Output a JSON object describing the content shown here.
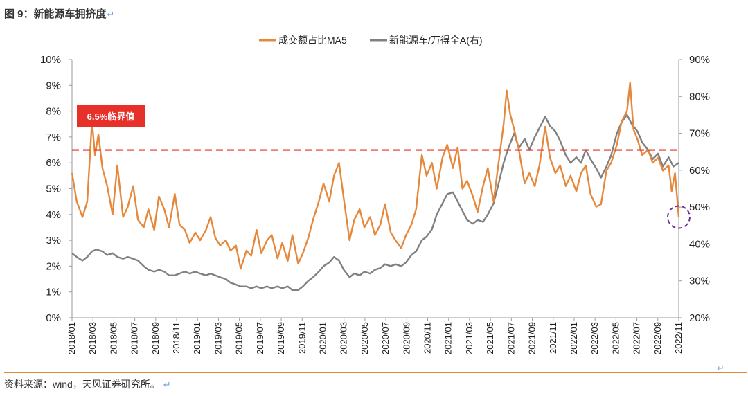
{
  "figure": {
    "title": "图 9：新能源车拥挤度",
    "return_mark": "↵",
    "source": "资料来源：wind，天风证券研究所。"
  },
  "colors": {
    "series_turnover": "#e6883b",
    "series_relative": "#808080",
    "threshold": "#e8302a",
    "annotation_bg": "#e8302a",
    "circle": "#7030a0",
    "rule": "#e08a38"
  },
  "chart_data": {
    "type": "line",
    "title": "",
    "xlabel": "",
    "ylabel_left": "",
    "ylabel_right": "",
    "x_tick_labels": [
      "2018/01",
      "2018/03",
      "2018/05",
      "2018/07",
      "2018/09",
      "2018/11",
      "2019/01",
      "2019/03",
      "2019/05",
      "2019/07",
      "2019/09",
      "2019/11",
      "2020/01",
      "2020/03",
      "2020/05",
      "2020/07",
      "2020/09",
      "2020/11",
      "2021/01",
      "2021/03",
      "2021/05",
      "2021/07",
      "2021/09",
      "2021/11",
      "2022/01",
      "2022/03",
      "2022/05",
      "2022/07",
      "2022/09",
      "2022/11"
    ],
    "x_range": [
      "2018-01-01",
      "2022-12-01"
    ],
    "y_left": {
      "ticks": [
        "0%",
        "1%",
        "2%",
        "3%",
        "4%",
        "5%",
        "6%",
        "7%",
        "8%",
        "9%",
        "10%"
      ],
      "range": [
        0,
        10
      ],
      "unit": "%"
    },
    "y_right": {
      "ticks": [
        "20%",
        "30%",
        "40%",
        "50%",
        "60%",
        "70%",
        "80%",
        "90%"
      ],
      "range": [
        20,
        90
      ],
      "unit": "%"
    },
    "legend": {
      "placement": "top-center"
    },
    "grid": false,
    "series": [
      {
        "name": "成交额占比MA5",
        "axis": "left",
        "points": [
          [
            "2018-01-01",
            5.6
          ],
          [
            "2018-01-15",
            4.5
          ],
          [
            "2018-02-01",
            3.9
          ],
          [
            "2018-02-15",
            4.5
          ],
          [
            "2018-03-01",
            7.6
          ],
          [
            "2018-03-10",
            6.3
          ],
          [
            "2018-03-20",
            7.1
          ],
          [
            "2018-04-01",
            5.8
          ],
          [
            "2018-04-15",
            5.1
          ],
          [
            "2018-05-01",
            4.0
          ],
          [
            "2018-05-15",
            5.9
          ],
          [
            "2018-06-01",
            3.9
          ],
          [
            "2018-06-15",
            4.3
          ],
          [
            "2018-07-01",
            5.1
          ],
          [
            "2018-07-15",
            3.8
          ],
          [
            "2018-08-01",
            3.5
          ],
          [
            "2018-08-15",
            4.2
          ],
          [
            "2018-09-01",
            3.4
          ],
          [
            "2018-09-15",
            4.7
          ],
          [
            "2018-10-01",
            4.2
          ],
          [
            "2018-10-15",
            3.5
          ],
          [
            "2018-11-01",
            4.8
          ],
          [
            "2018-11-15",
            3.6
          ],
          [
            "2018-12-01",
            3.4
          ],
          [
            "2018-12-15",
            2.9
          ],
          [
            "2019-01-01",
            3.3
          ],
          [
            "2019-01-15",
            3.0
          ],
          [
            "2019-02-01",
            3.4
          ],
          [
            "2019-02-15",
            3.9
          ],
          [
            "2019-03-01",
            3.1
          ],
          [
            "2019-03-15",
            2.8
          ],
          [
            "2019-04-01",
            3.0
          ],
          [
            "2019-04-15",
            2.6
          ],
          [
            "2019-05-01",
            2.8
          ],
          [
            "2019-05-15",
            1.9
          ],
          [
            "2019-06-01",
            2.6
          ],
          [
            "2019-06-15",
            2.4
          ],
          [
            "2019-07-01",
            3.4
          ],
          [
            "2019-07-15",
            2.5
          ],
          [
            "2019-08-01",
            3.0
          ],
          [
            "2019-08-15",
            3.2
          ],
          [
            "2019-09-01",
            2.3
          ],
          [
            "2019-09-15",
            2.9
          ],
          [
            "2019-10-01",
            2.2
          ],
          [
            "2019-10-15",
            3.2
          ],
          [
            "2019-11-01",
            2.1
          ],
          [
            "2019-11-15",
            2.5
          ],
          [
            "2019-12-01",
            3.1
          ],
          [
            "2019-12-15",
            3.8
          ],
          [
            "2020-01-01",
            4.5
          ],
          [
            "2020-01-15",
            5.2
          ],
          [
            "2020-02-01",
            4.5
          ],
          [
            "2020-02-15",
            5.5
          ],
          [
            "2020-03-01",
            6.0
          ],
          [
            "2020-03-15",
            4.6
          ],
          [
            "2020-04-01",
            3.0
          ],
          [
            "2020-04-15",
            3.8
          ],
          [
            "2020-05-01",
            4.2
          ],
          [
            "2020-05-15",
            3.5
          ],
          [
            "2020-06-01",
            3.9
          ],
          [
            "2020-06-15",
            3.2
          ],
          [
            "2020-07-01",
            3.6
          ],
          [
            "2020-07-15",
            4.4
          ],
          [
            "2020-08-01",
            3.3
          ],
          [
            "2020-08-15",
            3.0
          ],
          [
            "2020-09-01",
            2.7
          ],
          [
            "2020-09-15",
            3.2
          ],
          [
            "2020-10-01",
            3.6
          ],
          [
            "2020-10-15",
            4.2
          ],
          [
            "2020-11-01",
            6.3
          ],
          [
            "2020-11-15",
            5.5
          ],
          [
            "2020-12-01",
            6.0
          ],
          [
            "2020-12-15",
            5.0
          ],
          [
            "2021-01-01",
            6.2
          ],
          [
            "2021-01-15",
            6.7
          ],
          [
            "2021-02-01",
            5.8
          ],
          [
            "2021-02-15",
            6.6
          ],
          [
            "2021-03-01",
            5.0
          ],
          [
            "2021-03-15",
            5.3
          ],
          [
            "2021-04-01",
            4.7
          ],
          [
            "2021-04-15",
            4.1
          ],
          [
            "2021-05-01",
            5.1
          ],
          [
            "2021-05-15",
            5.8
          ],
          [
            "2021-06-01",
            4.5
          ],
          [
            "2021-06-15",
            5.9
          ],
          [
            "2021-07-01",
            7.5
          ],
          [
            "2021-07-10",
            8.8
          ],
          [
            "2021-07-20",
            7.9
          ],
          [
            "2021-08-01",
            7.3
          ],
          [
            "2021-08-15",
            6.5
          ],
          [
            "2021-09-01",
            5.2
          ],
          [
            "2021-09-15",
            5.6
          ],
          [
            "2021-10-01",
            5.1
          ],
          [
            "2021-10-15",
            5.9
          ],
          [
            "2021-11-01",
            7.4
          ],
          [
            "2021-11-15",
            6.2
          ],
          [
            "2021-12-01",
            5.6
          ],
          [
            "2021-12-15",
            5.9
          ],
          [
            "2022-01-01",
            5.1
          ],
          [
            "2022-01-15",
            5.5
          ],
          [
            "2022-02-01",
            4.9
          ],
          [
            "2022-02-15",
            5.6
          ],
          [
            "2022-03-01",
            5.9
          ],
          [
            "2022-03-15",
            4.8
          ],
          [
            "2022-04-01",
            4.3
          ],
          [
            "2022-04-15",
            4.4
          ],
          [
            "2022-05-01",
            5.7
          ],
          [
            "2022-05-15",
            6.0
          ],
          [
            "2022-06-01",
            6.7
          ],
          [
            "2022-06-15",
            7.6
          ],
          [
            "2022-07-01",
            8.0
          ],
          [
            "2022-07-10",
            9.1
          ],
          [
            "2022-07-20",
            7.3
          ],
          [
            "2022-08-01",
            6.9
          ],
          [
            "2022-08-15",
            6.3
          ],
          [
            "2022-09-01",
            6.5
          ],
          [
            "2022-09-15",
            6.0
          ],
          [
            "2022-10-01",
            6.2
          ],
          [
            "2022-10-15",
            5.7
          ],
          [
            "2022-11-01",
            5.9
          ],
          [
            "2022-11-10",
            4.9
          ],
          [
            "2022-11-20",
            5.6
          ],
          [
            "2022-12-01",
            3.9
          ]
        ]
      },
      {
        "name": "新能源车/万得全A(右)",
        "axis": "right",
        "points": [
          [
            "2018-01-01",
            37.5
          ],
          [
            "2018-01-15",
            36.5
          ],
          [
            "2018-02-01",
            35.5
          ],
          [
            "2018-02-15",
            36.5
          ],
          [
            "2018-03-01",
            38.0
          ],
          [
            "2018-03-15",
            38.5
          ],
          [
            "2018-04-01",
            38.0
          ],
          [
            "2018-04-15",
            37.0
          ],
          [
            "2018-05-01",
            37.5
          ],
          [
            "2018-05-15",
            36.5
          ],
          [
            "2018-06-01",
            36.0
          ],
          [
            "2018-06-15",
            36.5
          ],
          [
            "2018-07-01",
            36.0
          ],
          [
            "2018-07-15",
            35.5
          ],
          [
            "2018-08-01",
            34.0
          ],
          [
            "2018-08-15",
            33.0
          ],
          [
            "2018-09-01",
            32.5
          ],
          [
            "2018-09-15",
            33.0
          ],
          [
            "2018-10-01",
            32.5
          ],
          [
            "2018-10-15",
            31.5
          ],
          [
            "2018-11-01",
            31.5
          ],
          [
            "2018-11-15",
            32.0
          ],
          [
            "2018-12-01",
            32.5
          ],
          [
            "2018-12-15",
            32.0
          ],
          [
            "2019-01-01",
            32.5
          ],
          [
            "2019-01-15",
            32.0
          ],
          [
            "2019-02-01",
            31.5
          ],
          [
            "2019-02-15",
            32.0
          ],
          [
            "2019-03-01",
            31.5
          ],
          [
            "2019-03-15",
            31.0
          ],
          [
            "2019-04-01",
            30.5
          ],
          [
            "2019-04-15",
            29.5
          ],
          [
            "2019-05-01",
            29.0
          ],
          [
            "2019-05-15",
            28.5
          ],
          [
            "2019-06-01",
            28.5
          ],
          [
            "2019-06-15",
            28.0
          ],
          [
            "2019-07-01",
            28.5
          ],
          [
            "2019-07-15",
            28.0
          ],
          [
            "2019-08-01",
            28.5
          ],
          [
            "2019-08-15",
            28.0
          ],
          [
            "2019-09-01",
            28.5
          ],
          [
            "2019-09-15",
            28.0
          ],
          [
            "2019-10-01",
            28.5
          ],
          [
            "2019-10-15",
            27.5
          ],
          [
            "2019-11-01",
            27.5
          ],
          [
            "2019-11-15",
            28.5
          ],
          [
            "2019-12-01",
            30.0
          ],
          [
            "2019-12-15",
            31.0
          ],
          [
            "2020-01-01",
            32.5
          ],
          [
            "2020-01-15",
            34.0
          ],
          [
            "2020-02-01",
            35.0
          ],
          [
            "2020-02-15",
            36.5
          ],
          [
            "2020-03-01",
            35.5
          ],
          [
            "2020-03-15",
            33.0
          ],
          [
            "2020-04-01",
            31.0
          ],
          [
            "2020-04-15",
            32.0
          ],
          [
            "2020-05-01",
            31.5
          ],
          [
            "2020-05-15",
            32.5
          ],
          [
            "2020-06-01",
            32.0
          ],
          [
            "2020-06-15",
            33.0
          ],
          [
            "2020-07-01",
            33.5
          ],
          [
            "2020-07-15",
            34.5
          ],
          [
            "2020-08-01",
            34.0
          ],
          [
            "2020-08-15",
            34.5
          ],
          [
            "2020-09-01",
            34.0
          ],
          [
            "2020-09-15",
            35.0
          ],
          [
            "2020-10-01",
            37.0
          ],
          [
            "2020-10-15",
            38.0
          ],
          [
            "2020-11-01",
            41.0
          ],
          [
            "2020-11-15",
            42.0
          ],
          [
            "2020-12-01",
            44.0
          ],
          [
            "2020-12-15",
            48.0
          ],
          [
            "2021-01-01",
            51.0
          ],
          [
            "2021-01-15",
            53.5
          ],
          [
            "2021-02-01",
            54.0
          ],
          [
            "2021-02-15",
            51.5
          ],
          [
            "2021-03-01",
            49.0
          ],
          [
            "2021-03-15",
            46.5
          ],
          [
            "2021-04-01",
            45.5
          ],
          [
            "2021-04-15",
            46.5
          ],
          [
            "2021-05-01",
            46.0
          ],
          [
            "2021-05-15",
            48.0
          ],
          [
            "2021-06-01",
            51.0
          ],
          [
            "2021-06-15",
            56.0
          ],
          [
            "2021-07-01",
            62.0
          ],
          [
            "2021-07-15",
            66.0
          ],
          [
            "2021-08-01",
            70.0
          ],
          [
            "2021-08-15",
            66.0
          ],
          [
            "2021-09-01",
            68.5
          ],
          [
            "2021-09-15",
            65.5
          ],
          [
            "2021-10-01",
            69.0
          ],
          [
            "2021-10-15",
            71.5
          ],
          [
            "2021-11-01",
            74.5
          ],
          [
            "2021-11-15",
            72.0
          ],
          [
            "2021-12-01",
            70.5
          ],
          [
            "2021-12-15",
            68.0
          ],
          [
            "2022-01-01",
            64.0
          ],
          [
            "2022-01-15",
            62.0
          ],
          [
            "2022-02-01",
            63.5
          ],
          [
            "2022-02-15",
            62.0
          ],
          [
            "2022-03-01",
            65.5
          ],
          [
            "2022-03-15",
            63.0
          ],
          [
            "2022-04-01",
            60.5
          ],
          [
            "2022-04-15",
            58.0
          ],
          [
            "2022-05-01",
            61.0
          ],
          [
            "2022-05-15",
            64.0
          ],
          [
            "2022-06-01",
            70.0
          ],
          [
            "2022-06-15",
            73.0
          ],
          [
            "2022-07-01",
            75.0
          ],
          [
            "2022-07-15",
            72.5
          ],
          [
            "2022-08-01",
            70.5
          ],
          [
            "2022-08-15",
            67.5
          ],
          [
            "2022-09-01",
            65.5
          ],
          [
            "2022-09-15",
            63.0
          ],
          [
            "2022-10-01",
            64.5
          ],
          [
            "2022-10-15",
            61.0
          ],
          [
            "2022-11-01",
            63.5
          ],
          [
            "2022-11-15",
            61.0
          ],
          [
            "2022-12-01",
            62.0
          ]
        ]
      }
    ],
    "threshold": {
      "value": 6.5,
      "axis": "left",
      "label": "6.5%临界值"
    },
    "annotations": [
      {
        "type": "circle",
        "date": "2022-12-01",
        "value": 3.9,
        "axis": "left"
      }
    ]
  }
}
